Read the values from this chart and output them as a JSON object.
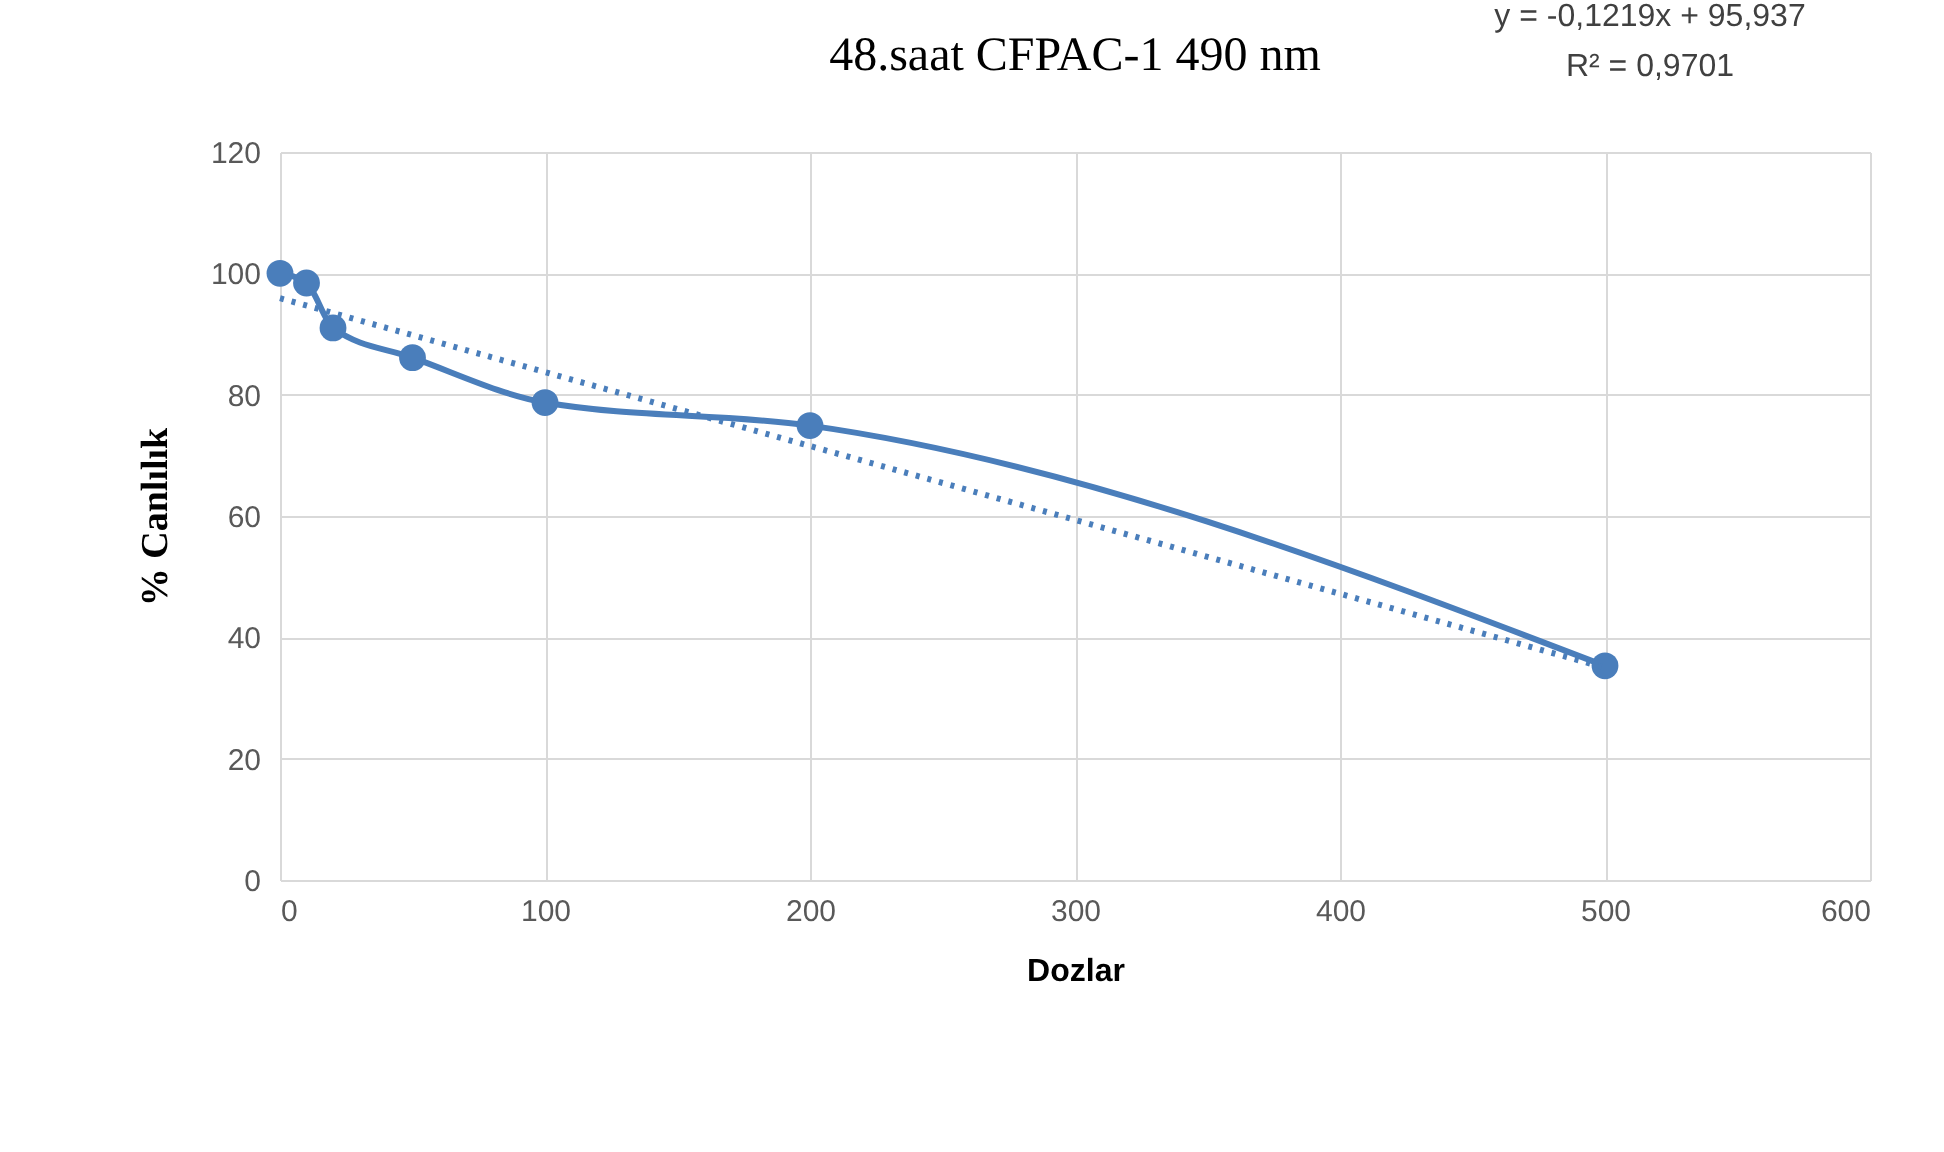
{
  "chart_data": {
    "type": "line",
    "title": "48.saat CFPAC-1 490 nm",
    "xlabel": "Dozlar",
    "ylabel": "% Canlılık",
    "x": [
      0,
      10,
      20,
      50,
      100,
      200,
      500
    ],
    "series": [
      {
        "color": "#4a7ebb",
        "values": [
          100,
          98.4,
          91,
          86.1,
          78.7,
          74.9,
          35.3
        ],
        "marker": "circle",
        "line_style": "solid"
      },
      {
        "type": "line",
        "color": "#4a7ebb",
        "x": [
          0,
          500
        ],
        "values": [
          95.9,
          35.0
        ],
        "marker": "none",
        "line_style": "dotted"
      }
    ],
    "annotations": [
      "y = -0,1219x + 95,937",
      "R² = 0,9701"
    ],
    "xlim": [
      0,
      600
    ],
    "xticks": [
      0,
      100,
      200,
      300,
      400,
      500,
      600
    ],
    "ylim": [
      0,
      120
    ],
    "yticks": [
      0,
      20,
      40,
      60,
      80,
      100,
      120
    ],
    "grid": true
  }
}
